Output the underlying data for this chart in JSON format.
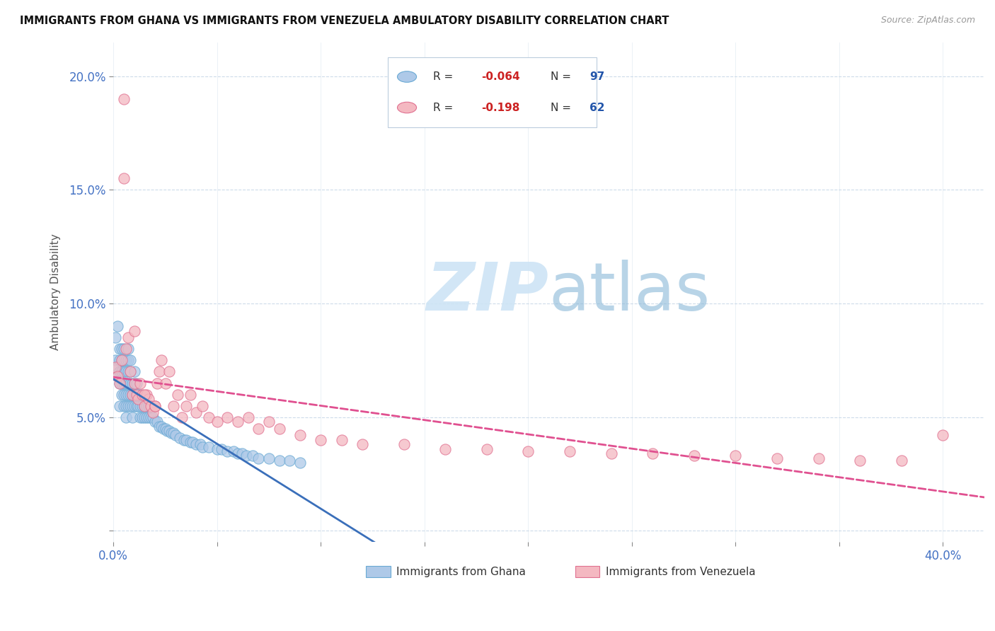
{
  "title": "IMMIGRANTS FROM GHANA VS IMMIGRANTS FROM VENEZUELA AMBULATORY DISABILITY CORRELATION CHART",
  "source": "Source: ZipAtlas.com",
  "ylabel": "Ambulatory Disability",
  "xlim": [
    0.0,
    0.42
  ],
  "ylim": [
    -0.005,
    0.215
  ],
  "ghana_R": -0.064,
  "ghana_N": 97,
  "venezuela_R": -0.198,
  "venezuela_N": 62,
  "ghana_color": "#aec9e8",
  "ghana_edge_color": "#6aaad4",
  "venezuela_color": "#f4b8c1",
  "venezuela_edge_color": "#e07090",
  "ghana_line_color": "#3a6fba",
  "venezuela_line_color": "#e05090",
  "watermark_color": "#cde4f5",
  "background_color": "#ffffff",
  "watermark": "ZIPatlas",
  "ghana_x": [
    0.001,
    0.001,
    0.002,
    0.002,
    0.002,
    0.003,
    0.003,
    0.003,
    0.003,
    0.003,
    0.004,
    0.004,
    0.004,
    0.004,
    0.004,
    0.005,
    0.005,
    0.005,
    0.005,
    0.005,
    0.005,
    0.006,
    0.006,
    0.006,
    0.006,
    0.006,
    0.006,
    0.007,
    0.007,
    0.007,
    0.007,
    0.007,
    0.007,
    0.008,
    0.008,
    0.008,
    0.008,
    0.008,
    0.009,
    0.009,
    0.009,
    0.009,
    0.01,
    0.01,
    0.01,
    0.01,
    0.011,
    0.011,
    0.011,
    0.012,
    0.012,
    0.013,
    0.013,
    0.013,
    0.014,
    0.014,
    0.015,
    0.015,
    0.016,
    0.016,
    0.017,
    0.017,
    0.018,
    0.019,
    0.02,
    0.021,
    0.022,
    0.023,
    0.024,
    0.025,
    0.026,
    0.027,
    0.028,
    0.029,
    0.03,
    0.032,
    0.034,
    0.035,
    0.037,
    0.038,
    0.04,
    0.042,
    0.043,
    0.046,
    0.05,
    0.052,
    0.055,
    0.058,
    0.06,
    0.062,
    0.064,
    0.067,
    0.07,
    0.075,
    0.08,
    0.085,
    0.09
  ],
  "ghana_y": [
    0.075,
    0.085,
    0.068,
    0.072,
    0.09,
    0.065,
    0.07,
    0.075,
    0.08,
    0.055,
    0.06,
    0.065,
    0.07,
    0.075,
    0.08,
    0.055,
    0.06,
    0.065,
    0.07,
    0.075,
    0.08,
    0.05,
    0.055,
    0.06,
    0.065,
    0.07,
    0.075,
    0.055,
    0.06,
    0.065,
    0.07,
    0.075,
    0.08,
    0.055,
    0.06,
    0.065,
    0.07,
    0.075,
    0.05,
    0.055,
    0.06,
    0.065,
    0.055,
    0.06,
    0.065,
    0.07,
    0.055,
    0.06,
    0.065,
    0.055,
    0.06,
    0.05,
    0.055,
    0.06,
    0.05,
    0.055,
    0.05,
    0.055,
    0.05,
    0.055,
    0.05,
    0.055,
    0.05,
    0.05,
    0.048,
    0.048,
    0.046,
    0.046,
    0.045,
    0.045,
    0.044,
    0.044,
    0.043,
    0.043,
    0.042,
    0.041,
    0.04,
    0.04,
    0.039,
    0.039,
    0.038,
    0.038,
    0.037,
    0.037,
    0.036,
    0.036,
    0.035,
    0.035,
    0.034,
    0.034,
    0.033,
    0.033,
    0.032,
    0.032,
    0.031,
    0.031,
    0.03
  ],
  "venezuela_x": [
    0.001,
    0.002,
    0.003,
    0.004,
    0.005,
    0.006,
    0.007,
    0.008,
    0.009,
    0.01,
    0.011,
    0.012,
    0.013,
    0.014,
    0.015,
    0.016,
    0.017,
    0.018,
    0.019,
    0.02,
    0.021,
    0.022,
    0.023,
    0.025,
    0.027,
    0.029,
    0.031,
    0.033,
    0.035,
    0.037,
    0.04,
    0.043,
    0.046,
    0.05,
    0.055,
    0.06,
    0.065,
    0.07,
    0.075,
    0.08,
    0.09,
    0.1,
    0.11,
    0.12,
    0.14,
    0.16,
    0.18,
    0.2,
    0.22,
    0.24,
    0.26,
    0.28,
    0.3,
    0.32,
    0.34,
    0.36,
    0.38,
    0.4,
    0.005,
    0.01,
    0.015,
    0.02
  ],
  "venezuela_y": [
    0.072,
    0.068,
    0.065,
    0.075,
    0.19,
    0.08,
    0.085,
    0.07,
    0.06,
    0.065,
    0.06,
    0.058,
    0.065,
    0.06,
    0.055,
    0.06,
    0.058,
    0.055,
    0.052,
    0.055,
    0.065,
    0.07,
    0.075,
    0.065,
    0.07,
    0.055,
    0.06,
    0.05,
    0.055,
    0.06,
    0.052,
    0.055,
    0.05,
    0.048,
    0.05,
    0.048,
    0.05,
    0.045,
    0.048,
    0.045,
    0.042,
    0.04,
    0.04,
    0.038,
    0.038,
    0.036,
    0.036,
    0.035,
    0.035,
    0.034,
    0.034,
    0.033,
    0.033,
    0.032,
    0.032,
    0.031,
    0.031,
    0.042,
    0.155,
    0.088,
    0.06,
    0.055
  ]
}
